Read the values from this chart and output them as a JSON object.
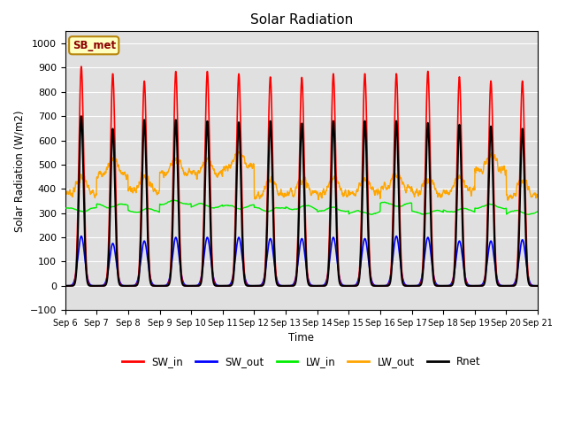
{
  "title": "Solar Radiation",
  "ylabel": "Solar Radiation (W/m2)",
  "xlabel": "Time",
  "annotation": "SB_met",
  "ylim": [
    -100,
    1050
  ],
  "days": 15,
  "colors": {
    "SW_in": "#ff0000",
    "SW_out": "#0000ff",
    "LW_in": "#00ee00",
    "LW_out": "#ffa500",
    "Rnet": "#000000"
  },
  "background_color": "#e0e0e0",
  "tick_labels": [
    "Sep 6",
    "Sep 7",
    "Sep 8",
    "Sep 9",
    "Sep 9",
    "Sep 10",
    "Sep 11",
    "Sep 12",
    "Sep 13",
    "Sep 14",
    "Sep 15",
    "Sep 16",
    "Sep 17",
    "Sep 18",
    "Sep 19",
    "Sep 20",
    "Sep 21"
  ],
  "SW_in_peaks": [
    905,
    875,
    845,
    885,
    885,
    875,
    862,
    860,
    875,
    875,
    875,
    885,
    862,
    845,
    845
  ],
  "SW_out_peaks": [
    205,
    175,
    185,
    200,
    200,
    200,
    195,
    195,
    200,
    195,
    205,
    200,
    185,
    185,
    190
  ],
  "LW_in_base": [
    315,
    330,
    310,
    345,
    330,
    325,
    315,
    322,
    315,
    302,
    335,
    302,
    312,
    328,
    303
  ],
  "LW_out_base": [
    385,
    460,
    395,
    465,
    460,
    490,
    372,
    382,
    382,
    382,
    402,
    382,
    392,
    480,
    372
  ],
  "Rnet_peaks": [
    700,
    648,
    685,
    685,
    680,
    675,
    680,
    670,
    680,
    680,
    680,
    672,
    665,
    658,
    648
  ]
}
